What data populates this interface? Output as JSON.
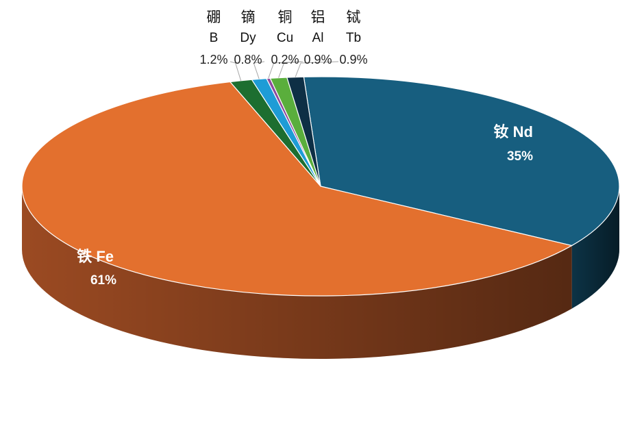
{
  "chart_data": {
    "type": "pie",
    "style": "3d",
    "slices": [
      {
        "name": "钕",
        "symbol": "Nd",
        "label": "钕 Nd",
        "value": 35,
        "value_label": "35%",
        "color": "#175E7F",
        "side_color": "#0C3346"
      },
      {
        "name": "铁",
        "symbol": "Fe",
        "label": "铁 Fe",
        "value": 61,
        "value_label": "61%",
        "color": "#E3702E",
        "side_color": "#9B4A22"
      },
      {
        "name": "硼",
        "symbol": "B",
        "label": "硼 B",
        "value": 1.2,
        "value_label": "1.2%",
        "color": "#1D6E30",
        "side_color": "#104019"
      },
      {
        "name": "镝",
        "symbol": "Dy",
        "label": "镝 Dy",
        "value": 0.8,
        "value_label": "0.8%",
        "color": "#1E9CD6",
        "side_color": "#125A7C"
      },
      {
        "name": "铜",
        "symbol": "Cu",
        "label": "铜 Cu",
        "value": 0.2,
        "value_label": "0.2%",
        "color": "#8E4A9E",
        "side_color": "#4F2958"
      },
      {
        "name": "铝",
        "symbol": "Al",
        "label": "铝 Al",
        "value": 0.9,
        "value_label": "0.9%",
        "color": "#5AAE3C",
        "side_color": "#356822"
      },
      {
        "name": "铽",
        "symbol": "Tb",
        "label": "铽 Tb",
        "value": 0.9,
        "value_label": "0.9%",
        "color": "#0E2F45",
        "side_color": "#07192A"
      }
    ]
  }
}
